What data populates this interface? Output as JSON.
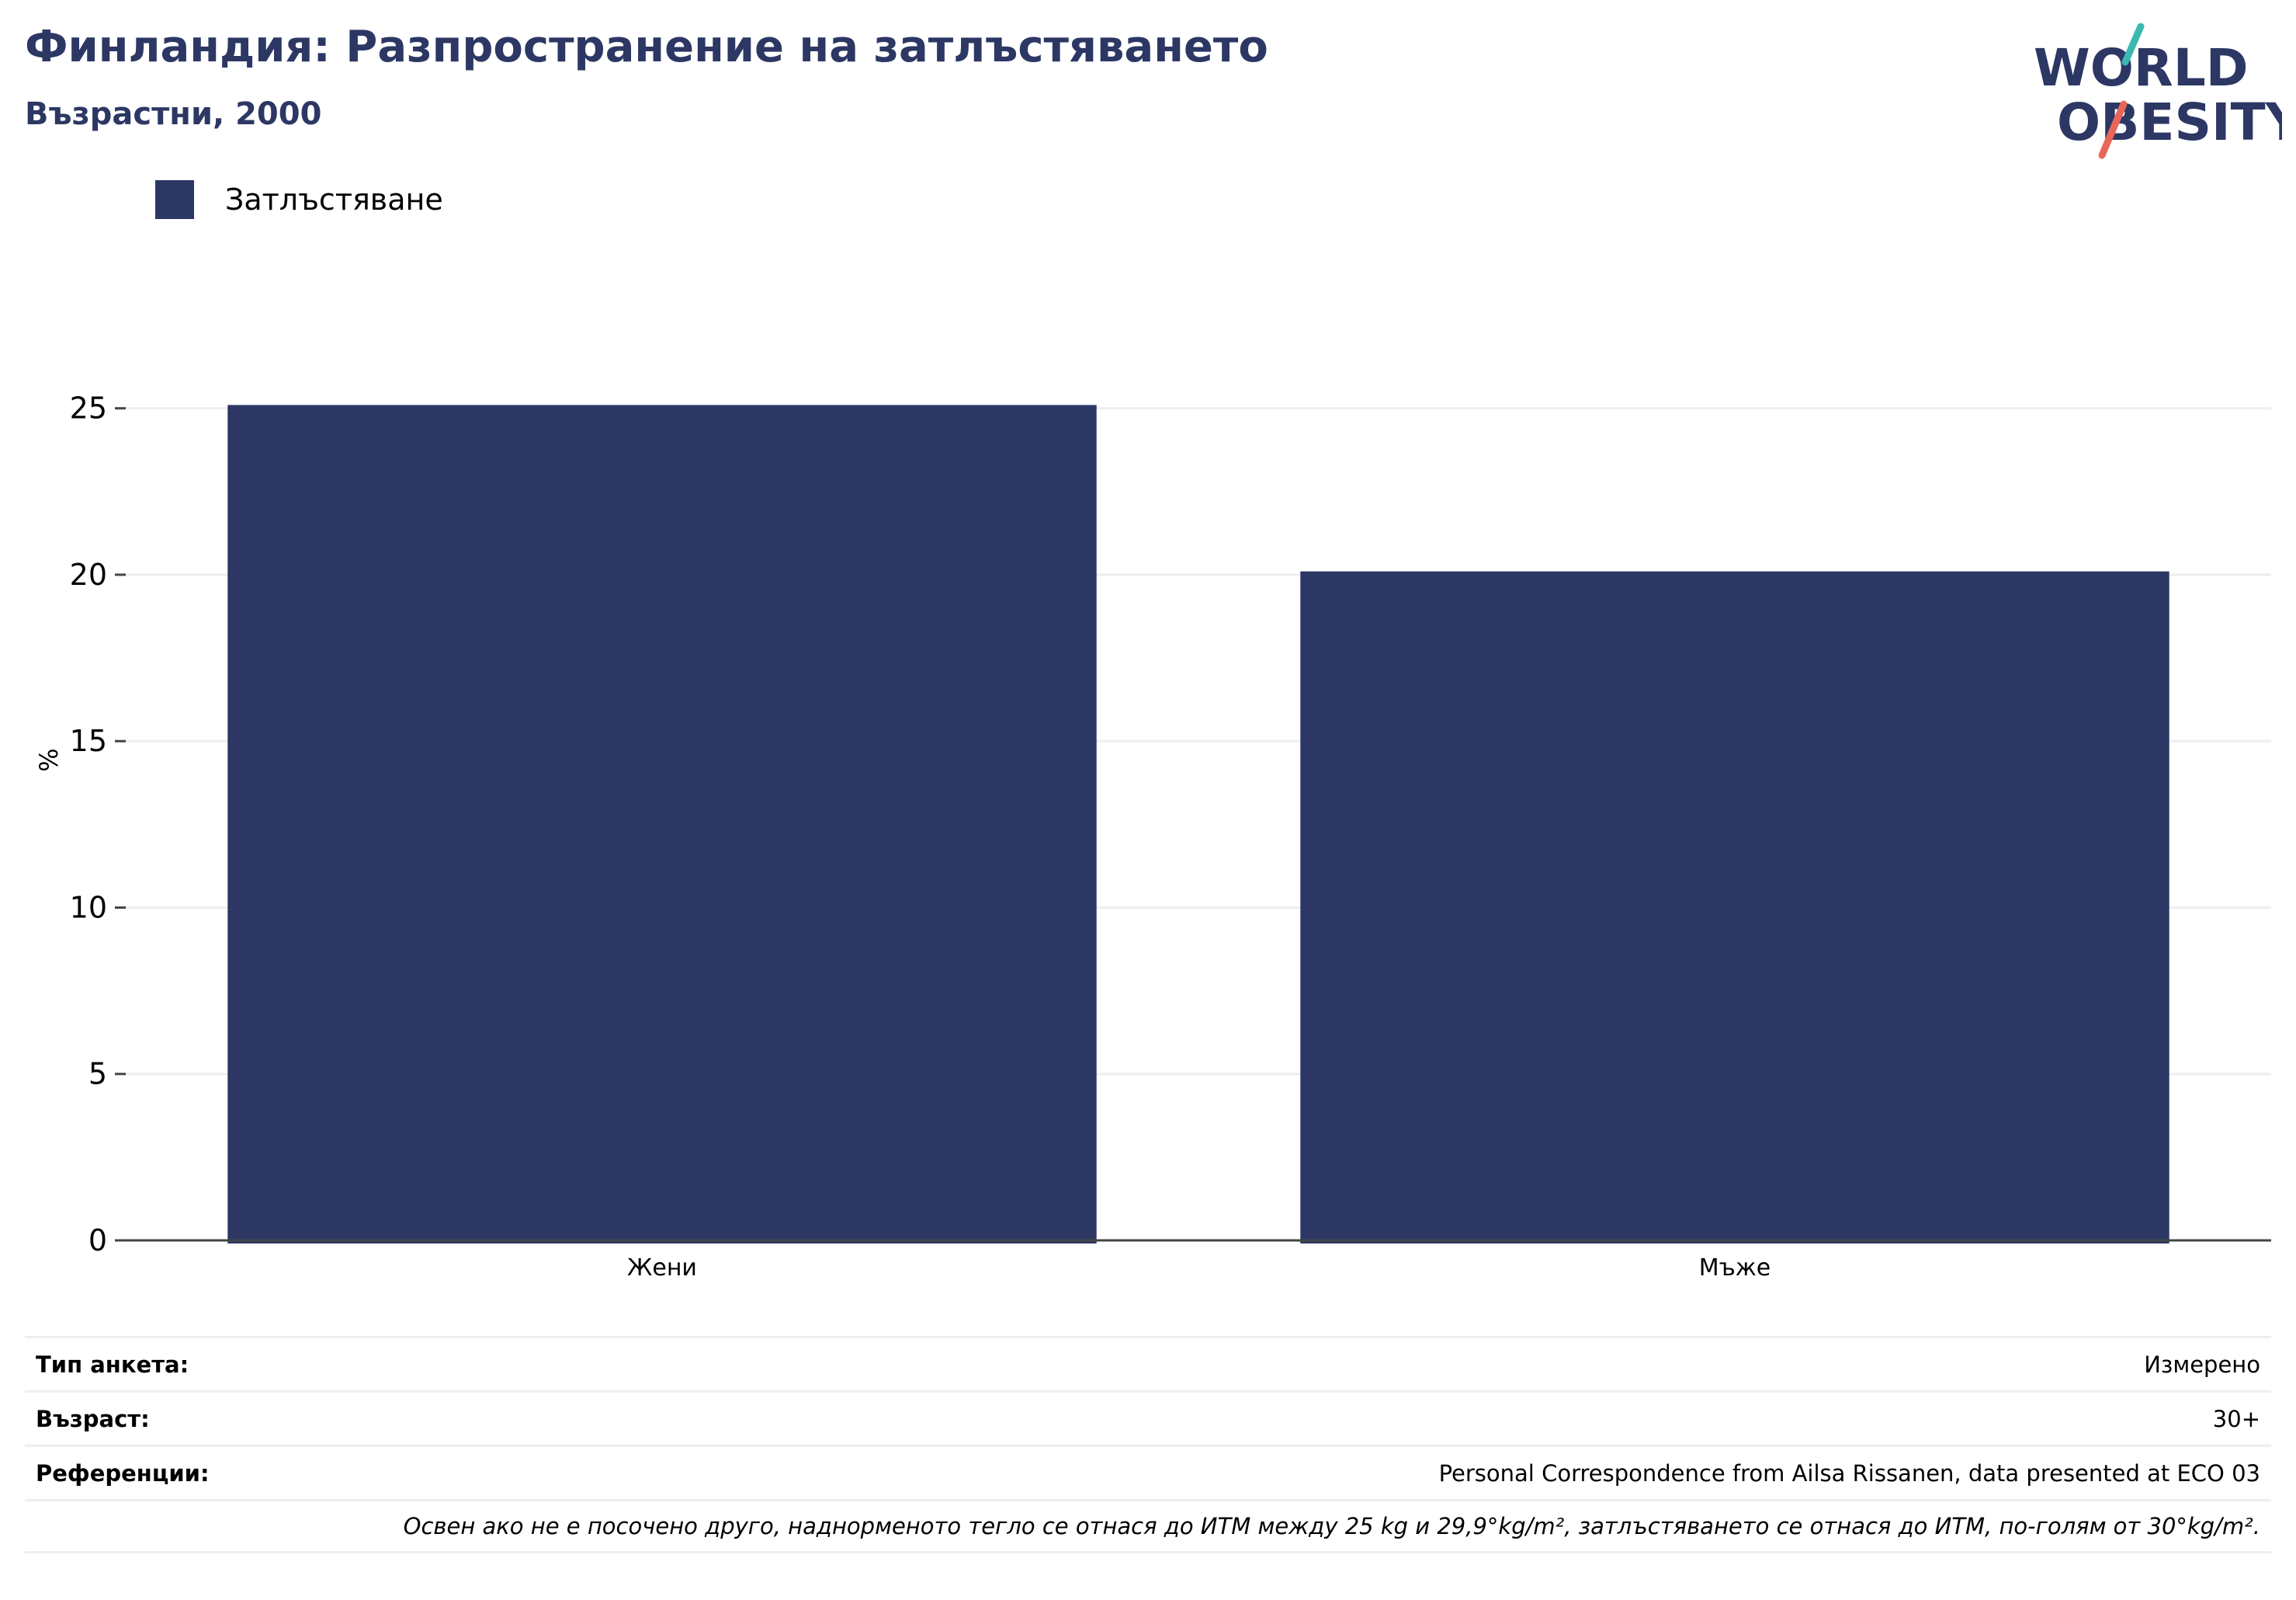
{
  "header": {
    "title": "Финландия: Разпространение на затлъстяването",
    "subtitle": "Възрастни, 2000"
  },
  "logo": {
    "line1": "WORLD",
    "line2": "OBESITY"
  },
  "colors": {
    "bar": "#2c3764",
    "title": "#2c3764",
    "logo_text": "#2c3764",
    "logo_teal": "#3bb8b0",
    "logo_coral": "#e8675a",
    "grid": "#eceef2",
    "axis": "#444444"
  },
  "chart_data": {
    "type": "bar",
    "categories": [
      "Жени",
      "Мъже"
    ],
    "series": [
      {
        "name": "Затлъстяване",
        "values": [
          25.1,
          20.1
        ]
      }
    ],
    "ylabel": "%",
    "xlabel": "",
    "ylim": [
      0,
      27
    ],
    "yticks": [
      0,
      5,
      10,
      15,
      20,
      25
    ],
    "grid": true,
    "legend_position": "top-left"
  },
  "info": {
    "survey_type_label": "Тип анкета:",
    "survey_type_value": "Измерено",
    "age_label": "Възраст:",
    "age_value": "30+",
    "references_label": "Референции:",
    "references_value": "Personal Correspondence from Ailsa Rissanen, data presented at ECO 03",
    "note": "Освен ако не е посочено друго, наднорменото тегло се отнася до ИТМ между 25 kg и 29,9°kg/m², затлъстяването се отнася до ИТМ, по-голям от 30°kg/m²."
  }
}
